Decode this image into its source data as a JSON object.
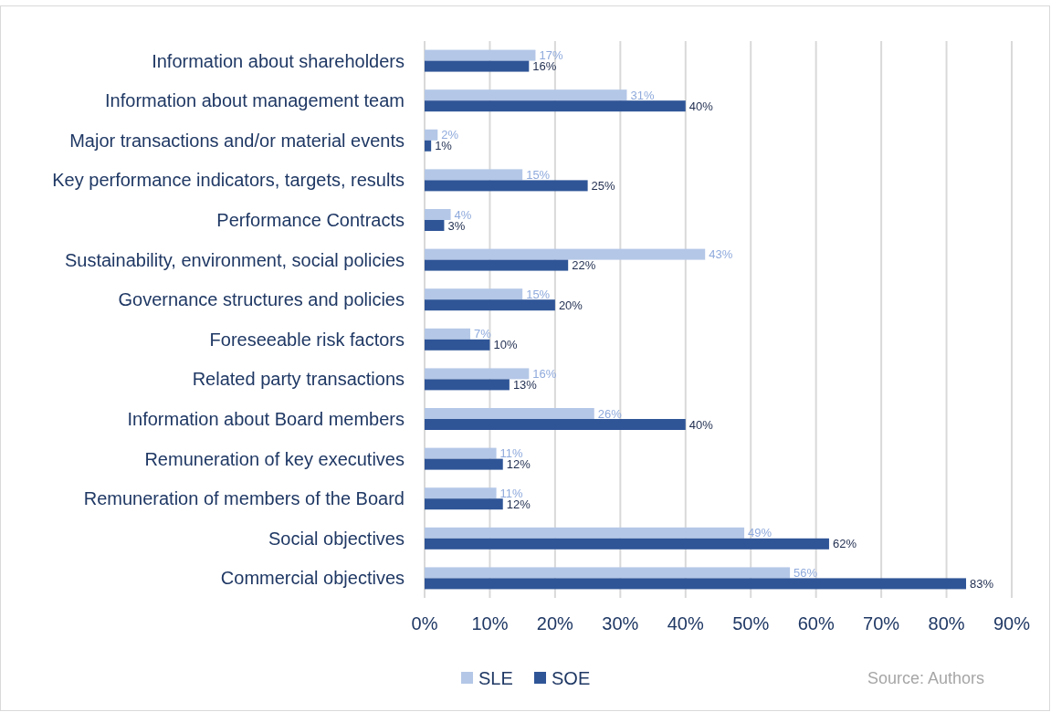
{
  "chart_data": {
    "type": "bar",
    "orientation": "horizontal",
    "categories": [
      "Information about shareholders",
      "Information about management team",
      "Major transactions and/or material events",
      "Key performance indicators, targets, results",
      "Performance Contracts",
      "Sustainability, environment, social policies",
      "Governance structures and policies",
      "Foreseeable risk factors",
      "Related party transactions",
      "Information about Board members",
      "Remuneration of key executives",
      "Remuneration of members of the Board",
      "Social objectives",
      "Commercial objectives"
    ],
    "series": [
      {
        "name": "SLE",
        "color": "#b4c7e7",
        "values": [
          17,
          31,
          2,
          15,
          4,
          43,
          15,
          7,
          16,
          26,
          11,
          11,
          49,
          56
        ],
        "value_labels": [
          "17%",
          "31%",
          "2%",
          "15%",
          "4%",
          "43%",
          "15%",
          "7%",
          "16%",
          "26%",
          "11%",
          "11%",
          "49%",
          "56%"
        ]
      },
      {
        "name": "SOE",
        "color": "#2f5597",
        "values": [
          16,
          40,
          1,
          25,
          3,
          22,
          20,
          10,
          13,
          40,
          12,
          12,
          62,
          83
        ],
        "value_labels": [
          "16%",
          "40%",
          "1%",
          "25%",
          "3%",
          "22%",
          "20%",
          "10%",
          "13%",
          "40%",
          "12%",
          "12%",
          "62%",
          "83%"
        ]
      }
    ],
    "xlim": [
      0,
      90
    ],
    "xticks": [
      {
        "value": 0,
        "label": "0%"
      },
      {
        "value": 10,
        "label": "10%"
      },
      {
        "value": 20,
        "label": "20%"
      },
      {
        "value": 30,
        "label": "30%"
      },
      {
        "value": 40,
        "label": "40%"
      },
      {
        "value": 50,
        "label": "50%"
      },
      {
        "value": 60,
        "label": "60%"
      },
      {
        "value": 70,
        "label": "70%"
      },
      {
        "value": 80,
        "label": "80%"
      },
      {
        "value": 90,
        "label": "90%"
      }
    ],
    "grid": "x",
    "legend": "bottom",
    "annotations": [
      "Source: Authors"
    ]
  }
}
